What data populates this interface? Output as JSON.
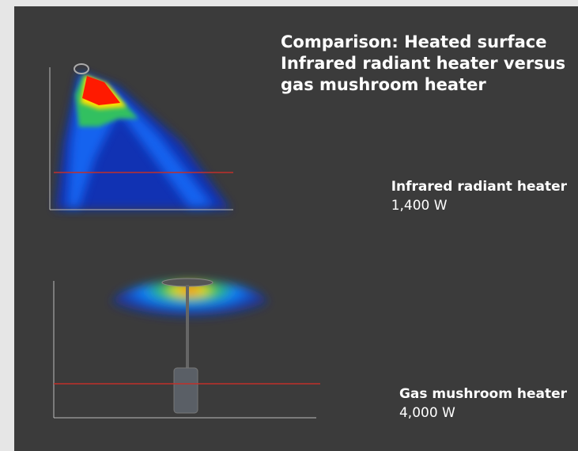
{
  "title": [
    "Comparison: Heated surface",
    "Infrared radiant heater versus",
    "gas mushroom heater"
  ],
  "heaters": [
    {
      "name": "Infrared radiant heater",
      "power": "1,400 W"
    },
    {
      "name": "Gas mushroom heater",
      "power": "4,000 W"
    }
  ]
}
